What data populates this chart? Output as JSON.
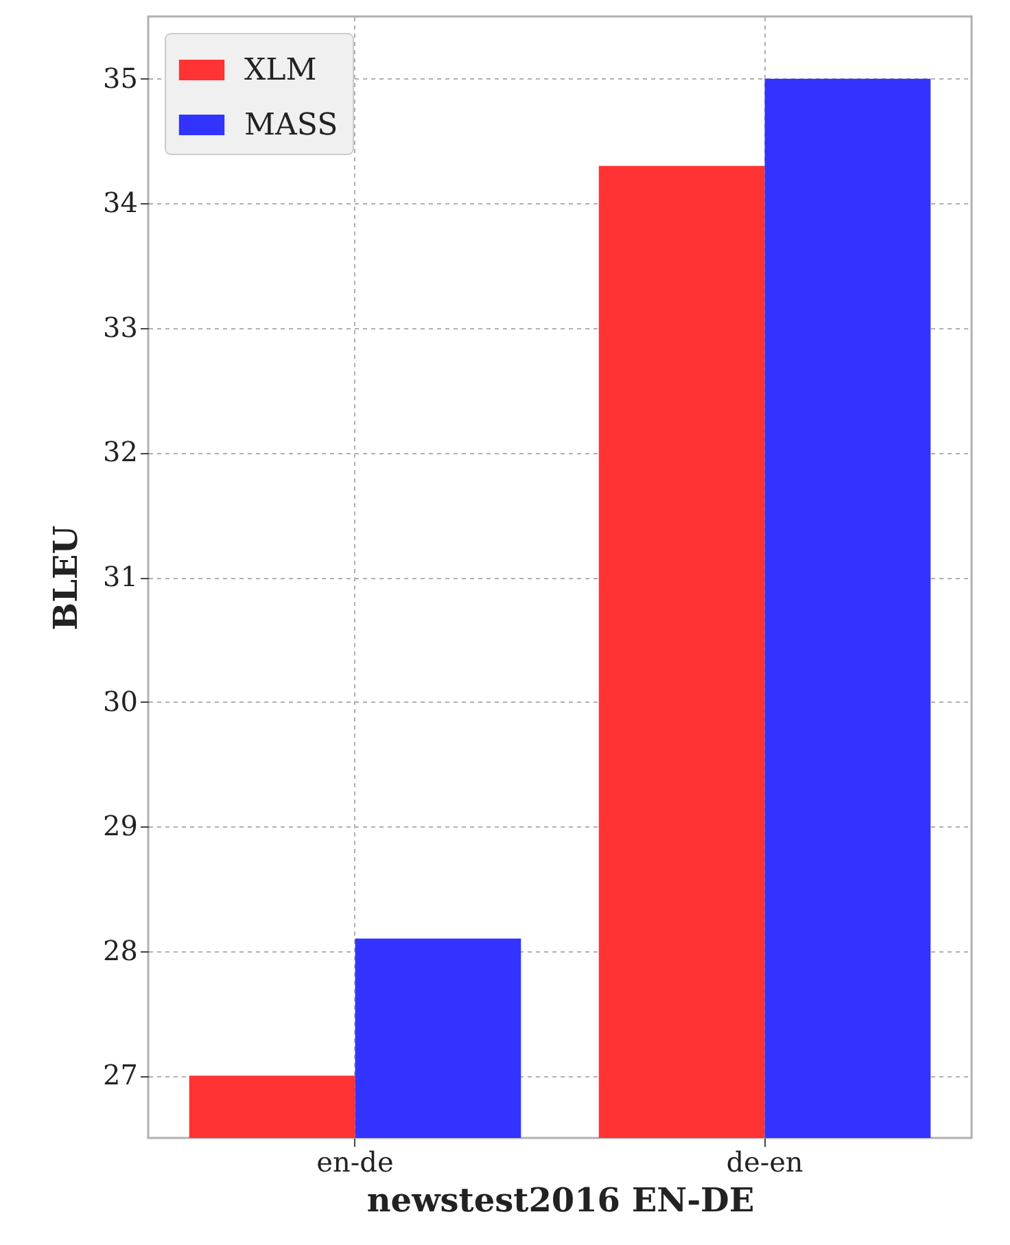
{
  "chart_data": {
    "type": "bar",
    "xlabel": "newstest2016 EN-DE",
    "ylabel": "BLEU",
    "categories": [
      "en-de",
      "de-en"
    ],
    "series": [
      {
        "name": "XLM",
        "color": "#ff3333",
        "values": [
          27.0,
          34.3
        ]
      },
      {
        "name": "MASS",
        "color": "#3333ff",
        "values": [
          28.1,
          35.0
        ]
      }
    ],
    "ylim": [
      26.5,
      35.5
    ],
    "yticks": [
      27,
      28,
      29,
      30,
      31,
      32,
      33,
      34,
      35
    ],
    "grid": true,
    "legend": "top left"
  }
}
